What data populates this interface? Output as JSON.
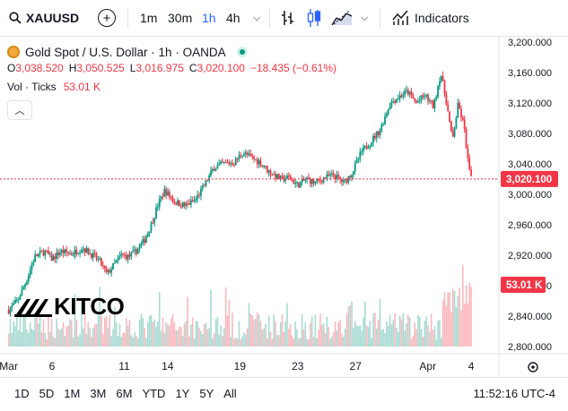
{
  "toolbar": {
    "symbol": "XAUUSD",
    "intervals": [
      "1m",
      "30m",
      "1h",
      "4h"
    ],
    "active_interval": "1h",
    "indicators_label": "Indicators"
  },
  "legend": {
    "title": "Gold Spot / U.S. Dollar · 1h · OANDA",
    "open_label": "O",
    "open": "3,038.520",
    "high_label": "H",
    "high": "3,050.525",
    "low_label": "L",
    "low": "3,016.975",
    "close_label": "C",
    "close": "3,020.100",
    "change": "−18.435 (−0.61%)",
    "vol_label": "Vol · Ticks",
    "vol_value": "53.01 K"
  },
  "logo": {
    "text": "KITCO"
  },
  "bottom": {
    "ranges": [
      "1D",
      "5D",
      "1M",
      "3M",
      "6M",
      "YTD",
      "1Y",
      "5Y",
      "All"
    ],
    "clock": "11:52:16 UTC-4"
  },
  "colors": {
    "up": "#089981",
    "down": "#f23645",
    "accent": "#2962ff"
  },
  "chart_data": {
    "type": "candlestick",
    "title": "Gold Spot / U.S. Dollar · 1h · OANDA",
    "ylim": [
      2800,
      3200
    ],
    "y_ticks": [
      2800,
      2840,
      2880,
      2920,
      2960,
      3000,
      3040,
      3080,
      3120,
      3160,
      3200
    ],
    "y_tick_labels": [
      "2,800.000",
      "2,840.000",
      "2,880.000",
      "2,920.000",
      "2,960.000",
      "3,000.000",
      "3,040.000",
      "3,080.000",
      "3,120.000",
      "3,160.000",
      "3,200.000"
    ],
    "x_tick_labels": [
      "Mar",
      "6",
      "11",
      "14",
      "19",
      "23",
      "27",
      "Apr",
      "4"
    ],
    "x_tick_days": [
      3,
      6,
      11,
      14,
      19,
      23,
      27,
      32,
      35
    ],
    "price_path": [
      [
        3.0,
        2848
      ],
      [
        3.6,
        2860
      ],
      [
        4.2,
        2885
      ],
      [
        4.8,
        2918
      ],
      [
        5.5,
        2925
      ],
      [
        6.0,
        2915
      ],
      [
        6.6,
        2925
      ],
      [
        7.4,
        2922
      ],
      [
        8.1,
        2930
      ],
      [
        8.8,
        2920
      ],
      [
        9.3,
        2912
      ],
      [
        9.8,
        2895
      ],
      [
        10.2,
        2905
      ],
      [
        10.8,
        2920
      ],
      [
        11.3,
        2918
      ],
      [
        11.8,
        2925
      ],
      [
        12.4,
        2940
      ],
      [
        12.9,
        2962
      ],
      [
        13.3,
        2985
      ],
      [
        13.8,
        3005
      ],
      [
        14.5,
        2990
      ],
      [
        15.2,
        2985
      ],
      [
        15.9,
        2992
      ],
      [
        16.5,
        3010
      ],
      [
        17.2,
        3035
      ],
      [
        17.9,
        3040
      ],
      [
        18.6,
        3042
      ],
      [
        19.2,
        3055
      ],
      [
        19.8,
        3048
      ],
      [
        20.4,
        3042
      ],
      [
        21.0,
        3030
      ],
      [
        21.8,
        3020
      ],
      [
        22.4,
        3022
      ],
      [
        23.0,
        3012
      ],
      [
        23.6,
        3020
      ],
      [
        24.2,
        3015
      ],
      [
        24.9,
        3022
      ],
      [
        25.5,
        3025
      ],
      [
        26.2,
        3015
      ],
      [
        26.8,
        3030
      ],
      [
        27.4,
        3055
      ],
      [
        28.0,
        3068
      ],
      [
        28.7,
        3085
      ],
      [
        29.4,
        3120
      ],
      [
        30.0,
        3128
      ],
      [
        30.6,
        3135
      ],
      [
        31.2,
        3120
      ],
      [
        31.8,
        3130
      ],
      [
        32.4,
        3115
      ],
      [
        32.9,
        3160
      ],
      [
        33.3,
        3120
      ],
      [
        33.7,
        3070
      ],
      [
        34.1,
        3118
      ],
      [
        34.5,
        3090
      ],
      [
        34.8,
        3040
      ],
      [
        35.0,
        3020
      ]
    ],
    "last_price": 3020.1,
    "last_price_label": "3,020.100",
    "volume_label": "53.01 K",
    "volume_value_k": 53.01
  }
}
